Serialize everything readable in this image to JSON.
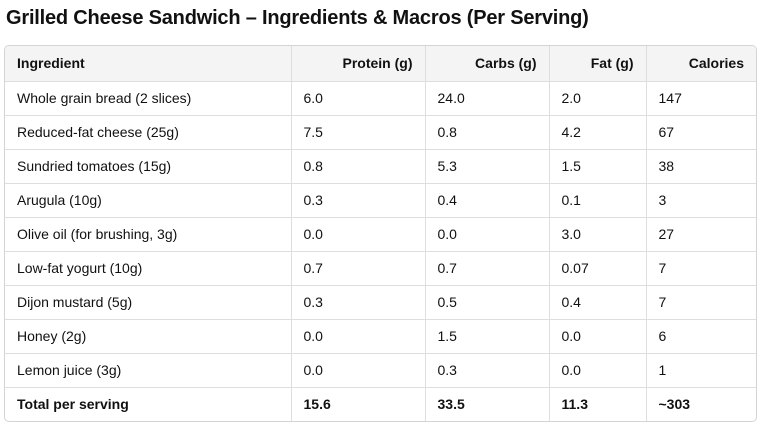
{
  "page": {
    "title": "Grilled Cheese Sandwich – Ingredients & Macros (Per Serving)"
  },
  "table": {
    "headers": [
      "Ingredient",
      "Protein (g)",
      "Carbs (g)",
      "Fat (g)",
      "Calories"
    ],
    "rows": [
      [
        "Whole grain bread (2 slices)",
        "6.0",
        "24.0",
        "2.0",
        "147"
      ],
      [
        "Reduced-fat cheese (25g)",
        "7.5",
        "0.8",
        "4.2",
        "67"
      ],
      [
        "Sundried tomatoes (15g)",
        "0.8",
        "5.3",
        "1.5",
        "38"
      ],
      [
        "Arugula (10g)",
        "0.3",
        "0.4",
        "0.1",
        "3"
      ],
      [
        "Olive oil (for brushing, 3g)",
        "0.0",
        "0.0",
        "3.0",
        "27"
      ],
      [
        "Low-fat yogurt (10g)",
        "0.7",
        "0.7",
        "0.07",
        "7"
      ],
      [
        "Dijon mustard (5g)",
        "0.3",
        "0.5",
        "0.4",
        "7"
      ],
      [
        "Honey (2g)",
        "0.0",
        "1.5",
        "0.0",
        "6"
      ],
      [
        "Lemon juice (3g)",
        "0.0",
        "0.3",
        "0.0",
        "1"
      ],
      [
        "Total per serving",
        "15.6",
        "33.5",
        "11.3",
        "~303"
      ]
    ]
  },
  "colors": {
    "header_bg": "#f4f4f4",
    "border": "#dedede",
    "text": "#111111"
  }
}
